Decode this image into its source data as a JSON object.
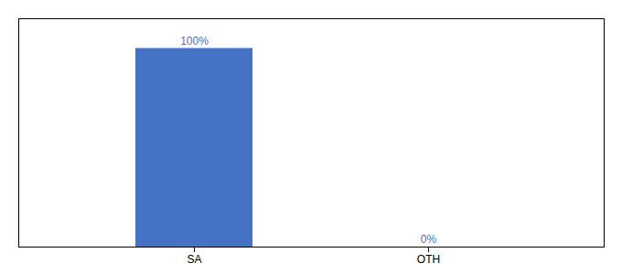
{
  "chart_data": {
    "type": "bar",
    "categories": [
      "SA",
      "OTH"
    ],
    "values": [
      100,
      0
    ],
    "value_labels": [
      "100%",
      "0%"
    ],
    "color": "#4472C4",
    "ylim": [
      0,
      115
    ],
    "yticks": [],
    "tick_labels": "x",
    "data_labels": true,
    "grid": false
  }
}
